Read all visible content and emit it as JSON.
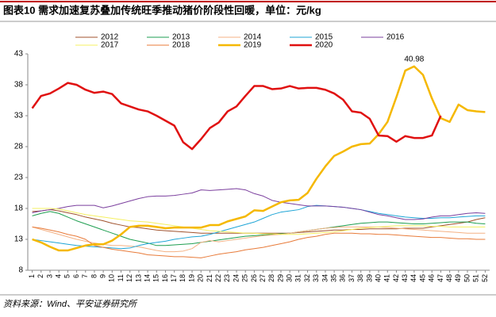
{
  "chart_data": {
    "type": "line",
    "title": "图表10    需求加速复苏叠加传统旺季推动猪价阶段性回暖，单位：元/kg",
    "source": "资料来源：Wind、平安证券研究所",
    "x": [
      1,
      2,
      3,
      4,
      5,
      6,
      7,
      8,
      9,
      10,
      11,
      12,
      13,
      14,
      15,
      16,
      17,
      18,
      19,
      20,
      21,
      22,
      23,
      24,
      25,
      26,
      27,
      28,
      29,
      30,
      31,
      32,
      33,
      34,
      35,
      36,
      37,
      38,
      39,
      40,
      41,
      42,
      43,
      44,
      45,
      46,
      47,
      48,
      49,
      50,
      51,
      52
    ],
    "xlim": [
      0.5,
      52.5
    ],
    "ylim": [
      8,
      43
    ],
    "yticks": [
      8,
      13,
      18,
      23,
      28,
      33,
      38,
      43
    ],
    "grid": false,
    "series": [
      {
        "name": "2012",
        "color": "#a0522d",
        "line_width": 1,
        "values": [
          17.5,
          17.6,
          17.8,
          17.6,
          17.3,
          17.0,
          16.6,
          16.3,
          16.0,
          15.6,
          15.3,
          15.0,
          14.9,
          14.7,
          14.5,
          14.4,
          14.3,
          14.2,
          14.1,
          14.0,
          14.0,
          14.0,
          14.0,
          14.0,
          14.0,
          14.0,
          14.0,
          14.0,
          14.0,
          14.0,
          14.1,
          14.2,
          14.3,
          14.4,
          14.5,
          14.5,
          14.6,
          14.6,
          14.7,
          14.7,
          14.7,
          14.7,
          14.8,
          14.8,
          14.8,
          15.0,
          15.2,
          15.4,
          15.6,
          15.8,
          16.2,
          16.5
        ]
      },
      {
        "name": "2013",
        "color": "#1e9e50",
        "line_width": 1,
        "values": [
          16.8,
          17.2,
          17.5,
          17.2,
          16.6,
          16.0,
          15.5,
          15.0,
          14.5,
          14.0,
          13.5,
          13.0,
          12.7,
          12.4,
          12.0,
          12.0,
          12.1,
          12.2,
          12.3,
          12.5,
          12.7,
          12.9,
          13.1,
          13.3,
          13.5,
          13.6,
          13.7,
          13.8,
          13.9,
          14.0,
          14.2,
          14.4,
          14.6,
          14.8,
          15.0,
          15.2,
          15.4,
          15.6,
          15.7,
          15.8,
          15.8,
          15.7,
          15.6,
          15.5,
          15.5,
          15.6,
          15.7,
          15.8,
          15.8,
          15.8,
          15.6,
          15.5
        ]
      },
      {
        "name": "2014",
        "color": "#f4b183",
        "line_width": 1,
        "values": [
          15.0,
          14.6,
          14.2,
          13.8,
          13.4,
          13.0,
          12.7,
          12.4,
          12.2,
          12.0,
          12.0,
          11.9,
          11.8,
          11.5,
          11.2,
          11.0,
          11.0,
          11.1,
          11.5,
          12.5,
          12.8,
          12.6,
          12.8,
          13.0,
          13.2,
          13.4,
          13.6,
          13.7,
          13.8,
          14.0,
          14.2,
          14.4,
          14.6,
          14.8,
          14.9,
          15.0,
          15.0,
          15.0,
          15.0,
          15.0,
          14.9,
          14.8,
          14.7,
          14.6,
          14.5,
          14.4,
          14.3,
          14.2,
          14.1,
          14.0,
          14.0,
          14.0
        ]
      },
      {
        "name": "2015",
        "color": "#1fa5d6",
        "line_width": 1,
        "values": [
          13.0,
          12.8,
          12.6,
          12.4,
          12.2,
          12.0,
          11.9,
          11.8,
          11.7,
          11.6,
          11.5,
          11.6,
          12.0,
          12.3,
          12.5,
          12.7,
          13.0,
          13.2,
          13.4,
          13.5,
          13.8,
          14.2,
          14.6,
          15.0,
          15.4,
          15.8,
          16.4,
          17.0,
          17.4,
          17.6,
          17.8,
          18.3,
          18.5,
          18.4,
          18.3,
          18.2,
          18.0,
          17.8,
          17.5,
          17.2,
          17.0,
          16.8,
          16.6,
          16.5,
          16.4,
          16.4,
          16.5,
          16.5,
          16.6,
          16.7,
          16.8,
          16.8
        ]
      },
      {
        "name": "2016",
        "color": "#7b3f9e",
        "line_width": 1,
        "values": [
          17.3,
          17.6,
          17.8,
          18.0,
          18.3,
          18.5,
          18.5,
          18.5,
          18.1,
          18.4,
          18.8,
          19.2,
          19.6,
          19.9,
          20.0,
          20.0,
          20.1,
          20.3,
          20.5,
          21.0,
          20.9,
          21.0,
          21.1,
          21.2,
          21.0,
          20.4,
          20.0,
          19.3,
          19.0,
          18.8,
          18.6,
          18.4,
          18.4,
          18.4,
          18.3,
          18.2,
          18.0,
          17.8,
          17.4,
          17.0,
          16.8,
          16.5,
          16.2,
          16.2,
          16.3,
          16.6,
          16.8,
          16.8,
          17.0,
          17.2,
          17.3,
          17.2
        ]
      },
      {
        "name": "2017",
        "color": "#f5f060",
        "line_width": 1,
        "values": [
          18.0,
          18.0,
          18.0,
          17.9,
          17.6,
          17.3,
          17.0,
          16.8,
          16.6,
          16.4,
          16.2,
          16.0,
          15.9,
          15.8,
          15.6,
          15.4,
          15.2,
          15.0,
          14.8,
          14.6,
          14.4,
          14.3,
          14.2,
          14.1,
          14.0,
          14.0,
          13.9,
          13.9,
          13.8,
          13.8,
          13.8,
          13.9,
          14.0,
          14.1,
          14.2,
          14.4,
          14.6,
          14.8,
          14.9,
          15.0,
          15.1,
          15.2,
          15.2,
          15.2,
          15.2,
          15.1,
          15.1,
          15.0,
          15.0,
          15.0,
          15.0,
          15.0
        ]
      },
      {
        "name": "2018",
        "color": "#e87b3a",
        "line_width": 1,
        "values": [
          15.0,
          14.8,
          14.5,
          14.2,
          13.8,
          13.5,
          13.0,
          12.0,
          11.7,
          11.4,
          11.2,
          11.0,
          10.8,
          10.5,
          10.4,
          10.3,
          10.2,
          10.2,
          10.1,
          10.0,
          10.3,
          10.6,
          10.8,
          11.0,
          11.3,
          11.5,
          11.7,
          12.0,
          12.3,
          12.6,
          13.0,
          13.3,
          13.5,
          13.8,
          14.0,
          14.0,
          14.0,
          13.9,
          13.9,
          13.8,
          13.8,
          13.7,
          13.6,
          13.5,
          13.4,
          13.3,
          13.3,
          13.2,
          13.1,
          13.1,
          13.0,
          13.0
        ]
      },
      {
        "name": "2019",
        "color": "#f5b800",
        "line_width": 2.5,
        "values": [
          13.0,
          12.5,
          11.8,
          11.2,
          11.2,
          11.6,
          12.0,
          12.2,
          12.2,
          12.8,
          13.8,
          15.0,
          15.2,
          15.2,
          15.0,
          14.8,
          14.9,
          14.9,
          14.9,
          14.9,
          15.3,
          15.3,
          15.9,
          16.3,
          16.7,
          17.7,
          17.6,
          18.3,
          19.0,
          19.3,
          19.4,
          20.5,
          22.8,
          24.8,
          26.5,
          27.2,
          28.0,
          28.4,
          28.5,
          30.0,
          32.0,
          36.0,
          40.3,
          40.98,
          39.6,
          35.8,
          32.6,
          32.0,
          34.8,
          33.9,
          33.7,
          33.6
        ],
        "value_labels": [
          null,
          null,
          null,
          null,
          null,
          null,
          null,
          null,
          null,
          null,
          null,
          null,
          null,
          null,
          null,
          null,
          null,
          null,
          null,
          null,
          null,
          null,
          null,
          null,
          null,
          null,
          null,
          null,
          null,
          null,
          null,
          null,
          null,
          null,
          null,
          null,
          null,
          null,
          null,
          null,
          null,
          null,
          null,
          "40.98",
          null,
          null,
          null,
          null,
          null,
          null,
          null,
          null
        ]
      },
      {
        "name": "2020",
        "color": "#e01010",
        "line_width": 2.5,
        "values": [
          34.2,
          36.2,
          36.6,
          37.4,
          38.3,
          38.0,
          37.2,
          36.7,
          36.9,
          36.5,
          35.0,
          34.5,
          34.0,
          33.7,
          33.0,
          32.2,
          31.4,
          28.7,
          27.6,
          29.2,
          31.0,
          31.9,
          33.7,
          34.5,
          36.2,
          37.8,
          37.8,
          37.3,
          37.4,
          37.8,
          37.4,
          37.5,
          37.5,
          37.2,
          36.6,
          35.6,
          33.7,
          33.5,
          32.5,
          29.8,
          29.7,
          28.8,
          29.7,
          29.4,
          29.4,
          29.8,
          33.0,
          null,
          null,
          null,
          null,
          null
        ]
      }
    ]
  }
}
